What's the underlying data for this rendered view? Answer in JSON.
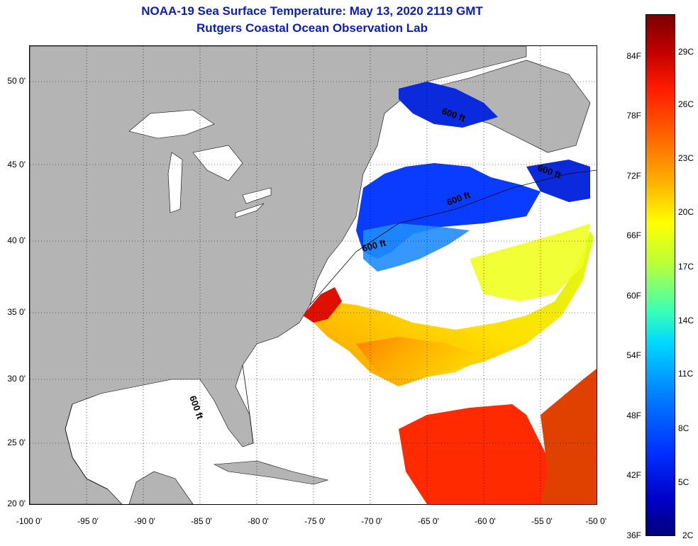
{
  "title_line1": "NOAA-19 Sea Surface Temperature:  May 13, 2020 2119 GMT",
  "title_line2": "Rutgers Coastal Ocean Observation Lab",
  "lat_labels": [
    "50 0'",
    "45 0'",
    "40 0'",
    "35 0'",
    "30 0'",
    "25 0'",
    "20 0'"
  ],
  "lon_labels": [
    "-100 0'",
    "-95 0'",
    "-90 0'",
    "-85 0'",
    "-80 0'",
    "-75 0'",
    "-70 0'",
    "-65 0'",
    "-60 0'",
    "-55 0'",
    "-50 0'"
  ],
  "contour_label": "600 ft",
  "colorbar_f": [
    "84F",
    "78F",
    "72F",
    "66F",
    "60F",
    "54F",
    "48F",
    "42F",
    "36F"
  ],
  "colorbar_c": [
    "29C",
    "26C",
    "23C",
    "20C",
    "17C",
    "14C",
    "11C",
    "8C",
    "5C",
    "2C"
  ],
  "colors": {
    "title": "#0a1fb0",
    "land": "#b4b4b4",
    "water_no_data": "#ffffff"
  }
}
